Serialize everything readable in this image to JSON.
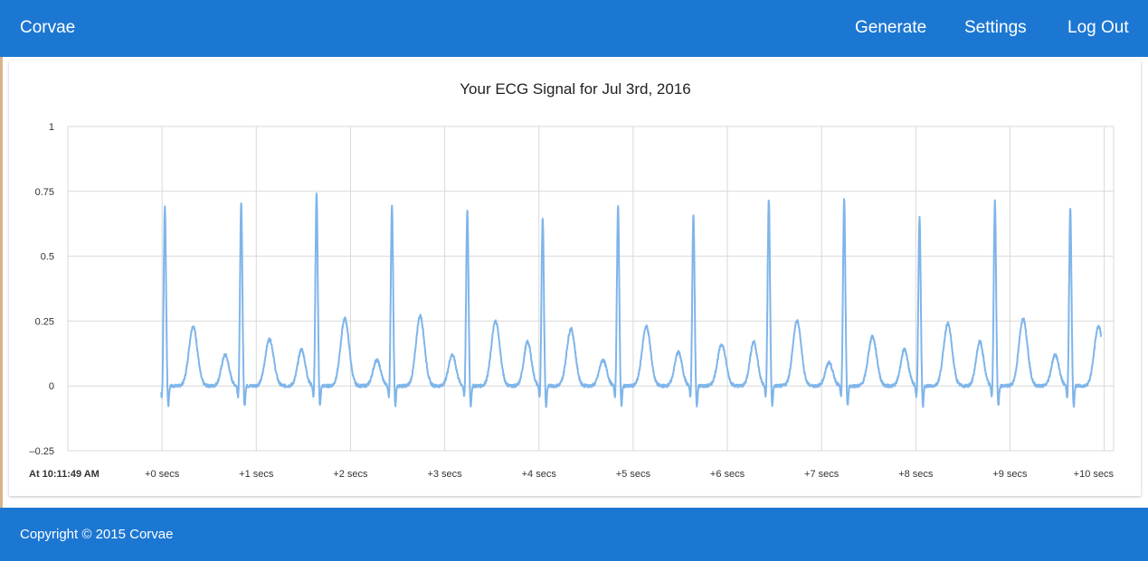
{
  "header": {
    "brand": "Corvae",
    "nav": [
      "Generate",
      "Settings",
      "Log Out"
    ]
  },
  "footer": {
    "copyright": "Copyright © 2015 Corvae"
  },
  "colors": {
    "primary": "#1c77d2",
    "series": "#7fb5ea",
    "grid": "#d9d9d9"
  },
  "chart_data": {
    "type": "line",
    "title": "Your ECG Signal for Jul 3rd, 2016",
    "start_label": "At 10:11:49 AM",
    "x_tick_labels": [
      "+0 secs",
      "+1 secs",
      "+2 secs",
      "+3 secs",
      "+4 secs",
      "+5 secs",
      "+6 secs",
      "+7 secs",
      "+8 secs",
      "+9 secs",
      "+10 secs"
    ],
    "y_tick_labels": [
      "1",
      "0.75",
      "0.5",
      "0.25",
      "0",
      "–0.25"
    ],
    "ylim": [
      -0.25,
      1
    ],
    "xlim": [
      -1,
      10.1
    ],
    "grid": true,
    "legend": "none",
    "series": [
      {
        "beats": [
          {
            "t": 0.03,
            "r": 0.69,
            "t_wave": 0.23
          },
          {
            "t": 0.84,
            "r": 0.7,
            "t_wave": 0.18
          },
          {
            "t": 1.64,
            "r": 0.74,
            "t_wave": 0.26
          },
          {
            "t": 2.44,
            "r": 0.7,
            "t_wave": 0.27
          },
          {
            "t": 3.24,
            "r": 0.68,
            "t_wave": 0.25
          },
          {
            "t": 4.04,
            "r": 0.65,
            "t_wave": 0.22
          },
          {
            "t": 4.84,
            "r": 0.69,
            "t_wave": 0.23
          },
          {
            "t": 5.64,
            "r": 0.66,
            "t_wave": 0.16
          },
          {
            "t": 6.44,
            "r": 0.72,
            "t_wave": 0.25
          },
          {
            "t": 7.24,
            "r": 0.72,
            "t_wave": 0.19
          },
          {
            "t": 8.04,
            "r": 0.65,
            "t_wave": 0.24
          },
          {
            "t": 8.84,
            "r": 0.71,
            "t_wave": 0.26
          },
          {
            "t": 9.64,
            "r": 0.68,
            "t_wave": 0.23
          }
        ],
        "p_waves": [
          0.12,
          0.14,
          0.1,
          0.12,
          0.17,
          0.1,
          0.13,
          0.17,
          0.09,
          0.14,
          0.17,
          0.12
        ],
        "signal_start": -0.01,
        "signal_end": 9.97
      }
    ]
  }
}
